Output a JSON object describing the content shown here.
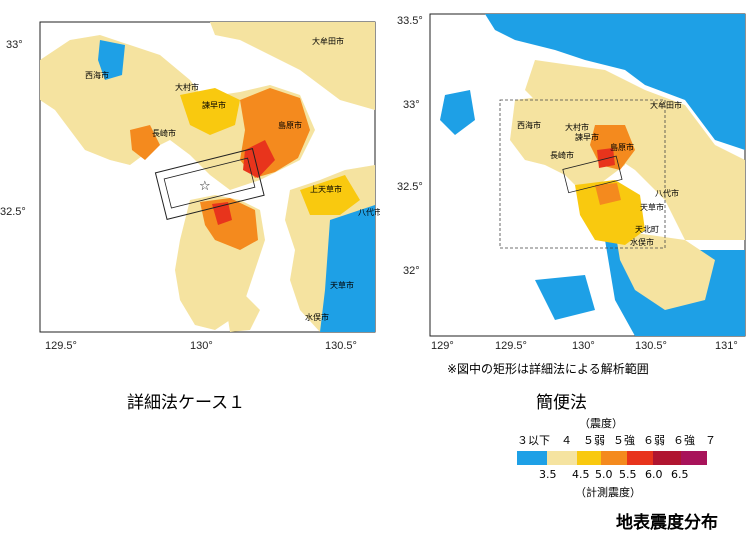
{
  "left_map": {
    "y_ticks": [
      "33°",
      "32.5°"
    ],
    "x_ticks": [
      "129.5°",
      "130°",
      "130.5°"
    ],
    "cities": [
      "西海市",
      "大村市",
      "諫早市",
      "長崎市",
      "島原市",
      "大牟田市",
      "上天草市",
      "八代市",
      "天草市",
      "水俣市"
    ],
    "caption": "詳細法ケース１"
  },
  "right_map": {
    "y_ticks": [
      "33.5°",
      "33°",
      "32.5°",
      "32°"
    ],
    "x_ticks": [
      "129°",
      "129.5°",
      "130°",
      "130.5°",
      "131°"
    ],
    "cities": [
      "大牟田市",
      "西海市",
      "大村市",
      "諫早市",
      "長崎市",
      "島原市",
      "八代市",
      "天草市",
      "天北町",
      "水俣市"
    ],
    "note": "※図中の矩形は詳細法による解析範囲",
    "caption": "簡便法"
  },
  "legend": {
    "title_top": "（震度）",
    "intensity_labels": [
      "３以下",
      "４",
      "５弱",
      "５強",
      "６弱",
      "６強",
      "７"
    ],
    "instrumental_values": [
      "3.5",
      "4.5",
      "5.0",
      "5.5",
      "6.0",
      "6.5"
    ],
    "title_bottom": "（計測震度）",
    "colors": [
      "#1ea0e6",
      "#f5e3a0",
      "#f9c90f",
      "#f48a1e",
      "#e8341c",
      "#b01530",
      "#a8135a"
    ]
  },
  "figure_title": "地表震度分布"
}
